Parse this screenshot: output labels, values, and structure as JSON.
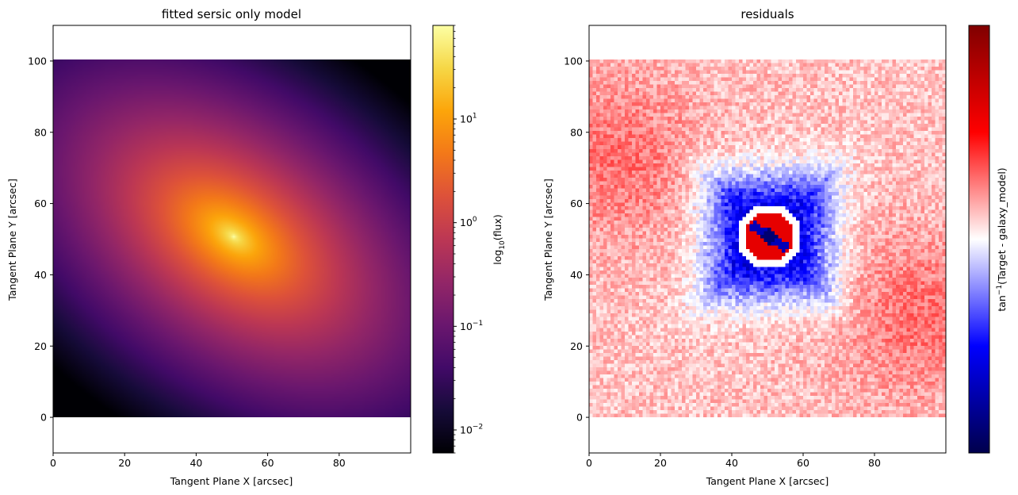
{
  "chart_data": [
    {
      "type": "heatmap",
      "title": "fitted sersic only model",
      "xlabel": "Tangent Plane X [arcsec]",
      "ylabel": "Tangent Plane Y [arcsec]",
      "xlim": [
        0,
        100
      ],
      "ylim": [
        -10,
        110
      ],
      "xticks": [
        0,
        20,
        40,
        60,
        80
      ],
      "yticks": [
        0,
        20,
        40,
        60,
        80,
        100
      ],
      "image_extent": {
        "x": [
          0,
          100
        ],
        "y": [
          0,
          100
        ]
      },
      "colormap": "inferno",
      "colorbar": {
        "label_base": "log",
        "label_sub": "10",
        "label_rest": "(flux)",
        "scale": "log",
        "range": [
          0.006,
          80
        ],
        "ticks": [
          {
            "value": 0.01,
            "base": "10",
            "exp": "−2"
          },
          {
            "value": 0.1,
            "base": "10",
            "exp": "−1"
          },
          {
            "value": 1,
            "base": "10",
            "exp": "0"
          },
          {
            "value": 10,
            "base": "10",
            "exp": "1"
          }
        ]
      },
      "model": {
        "center": [
          50,
          50
        ],
        "peak": 80,
        "min": 0.006,
        "position_angle_deg": -35,
        "axis_ratio": 0.6
      }
    },
    {
      "type": "heatmap",
      "title": "residuals",
      "xlabel": "Tangent Plane X [arcsec]",
      "ylabel": "Tangent Plane Y [arcsec]",
      "xlim": [
        0,
        100
      ],
      "ylim": [
        -10,
        110
      ],
      "xticks": [
        0,
        20,
        40,
        60,
        80
      ],
      "yticks": [
        0,
        20,
        40,
        60,
        80,
        100
      ],
      "image_extent": {
        "x": [
          0,
          100
        ],
        "y": [
          0,
          100
        ]
      },
      "colormap": "seismic",
      "colorbar": {
        "label_pre": "tan",
        "label_sup": "−1",
        "label_rest": "(Target - galaxy_model)",
        "ticks": []
      }
    }
  ]
}
